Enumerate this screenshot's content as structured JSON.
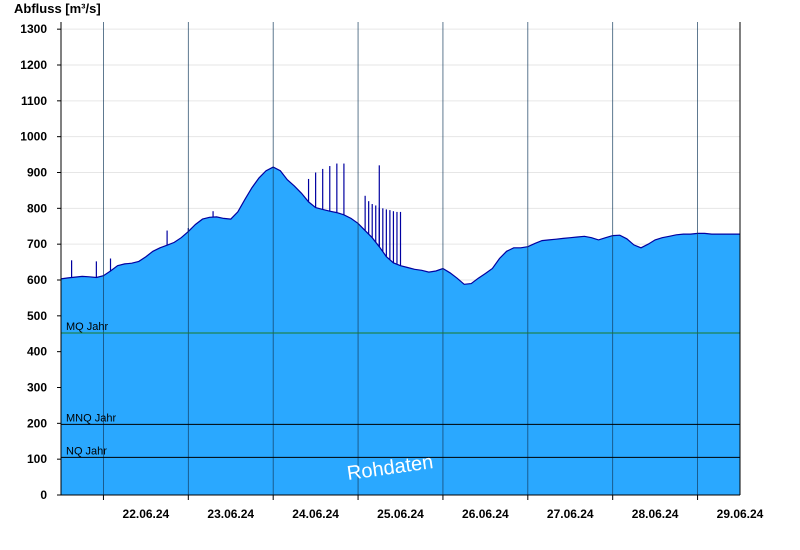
{
  "chart_data": {
    "type": "area",
    "title": "",
    "ylabel": "Abfluss [m³/s]",
    "xlabel": "",
    "ylim": [
      0,
      1320
    ],
    "yticks": [
      0,
      100,
      200,
      300,
      400,
      500,
      600,
      700,
      800,
      900,
      1000,
      1100,
      1200,
      1300
    ],
    "xlim": [
      "21.06.24 12:00",
      "29.06.24 12:00"
    ],
    "day_boundaries": [
      "22.06.24",
      "23.06.24",
      "24.06.24",
      "25.06.24",
      "26.06.24",
      "27.06.24",
      "28.06.24",
      "29.06.24"
    ],
    "xtick_labels": [
      "22.06.24",
      "23.06.24",
      "24.06.24",
      "25.06.24",
      "26.06.24",
      "27.06.24",
      "28.06.24",
      "29.06.24"
    ],
    "grid": true,
    "area_color": "#2aa8ff",
    "line_color": "#0000a0",
    "series": [
      {
        "x": [
          "21.06.24 12:00",
          "21.06.24 14:00",
          "21.06.24 16:00",
          "21.06.24 18:00",
          "21.06.24 20:00",
          "21.06.24 22:00",
          "22.06.24 00:00",
          "22.06.24 02:00",
          "22.06.24 04:00",
          "22.06.24 06:00",
          "22.06.24 08:00",
          "22.06.24 10:00",
          "22.06.24 12:00",
          "22.06.24 14:00",
          "22.06.24 16:00",
          "22.06.24 18:00",
          "22.06.24 20:00",
          "22.06.24 22:00",
          "23.06.24 00:00",
          "23.06.24 02:00",
          "23.06.24 04:00",
          "23.06.24 06:00",
          "23.06.24 08:00",
          "23.06.24 10:00",
          "23.06.24 12:00",
          "23.06.24 14:00",
          "23.06.24 16:00",
          "23.06.24 18:00",
          "23.06.24 20:00",
          "23.06.24 22:00",
          "24.06.24 00:00",
          "24.06.24 02:00",
          "24.06.24 04:00",
          "24.06.24 06:00",
          "24.06.24 08:00",
          "24.06.24 10:00",
          "24.06.24 12:00",
          "24.06.24 14:00",
          "24.06.24 16:00",
          "24.06.24 18:00",
          "24.06.24 20:00",
          "24.06.24 22:00",
          "25.06.24 00:00",
          "25.06.24 02:00",
          "25.06.24 04:00",
          "25.06.24 06:00",
          "25.06.24 08:00",
          "25.06.24 10:00",
          "25.06.24 12:00",
          "25.06.24 14:00",
          "25.06.24 16:00",
          "25.06.24 18:00",
          "25.06.24 20:00",
          "25.06.24 22:00",
          "26.06.24 00:00",
          "26.06.24 02:00",
          "26.06.24 04:00",
          "26.06.24 06:00",
          "26.06.24 08:00",
          "26.06.24 10:00",
          "26.06.24 12:00",
          "26.06.24 14:00",
          "26.06.24 16:00",
          "26.06.24 18:00",
          "26.06.24 20:00",
          "26.06.24 22:00",
          "27.06.24 00:00",
          "27.06.24 02:00",
          "27.06.24 04:00",
          "27.06.24 06:00",
          "27.06.24 08:00",
          "27.06.24 10:00",
          "27.06.24 12:00",
          "27.06.24 14:00",
          "27.06.24 16:00",
          "27.06.24 18:00",
          "27.06.24 20:00",
          "27.06.24 22:00",
          "28.06.24 00:00",
          "28.06.24 02:00",
          "28.06.24 04:00",
          "28.06.24 06:00",
          "28.06.24 08:00",
          "28.06.24 10:00",
          "28.06.24 12:00",
          "28.06.24 14:00",
          "28.06.24 16:00",
          "28.06.24 18:00",
          "28.06.24 20:00",
          "28.06.24 22:00",
          "29.06.24 00:00",
          "29.06.24 02:00",
          "29.06.24 04:00",
          "29.06.24 06:00",
          "29.06.24 08:00",
          "29.06.24 10:00",
          "29.06.24 12:00"
        ],
        "y": [
          603,
          606,
          608,
          610,
          609,
          607,
          612,
          625,
          640,
          645,
          647,
          652,
          665,
          680,
          690,
          697,
          705,
          718,
          735,
          755,
          770,
          775,
          776,
          772,
          770,
          790,
          825,
          858,
          885,
          905,
          915,
          905,
          880,
          862,
          842,
          818,
          802,
          797,
          792,
          788,
          782,
          772,
          758,
          738,
          718,
          693,
          665,
          648,
          640,
          635,
          630,
          627,
          622,
          625,
          632,
          620,
          605,
          588,
          590,
          605,
          618,
          632,
          660,
          680,
          690,
          690,
          693,
          702,
          710,
          712,
          714,
          716,
          718,
          720,
          722,
          718,
          712,
          718,
          724,
          725,
          715,
          698,
          690,
          700,
          712,
          718,
          722,
          726,
          728,
          728,
          730,
          730,
          728,
          728,
          728,
          728,
          728
        ]
      }
    ],
    "spikes": [
      {
        "x": "21.06.24 15:00",
        "y": 655
      },
      {
        "x": "21.06.24 22:00",
        "y": 652
      },
      {
        "x": "22.06.24 02:00",
        "y": 660
      },
      {
        "x": "22.06.24 18:00",
        "y": 738
      },
      {
        "x": "23.06.24 00:00",
        "y": 745
      },
      {
        "x": "23.06.24 07:00",
        "y": 792
      },
      {
        "x": "23.06.24 20:00",
        "y": 815
      },
      {
        "x": "24.06.24 03:00",
        "y": 835
      },
      {
        "x": "24.06.24 10:00",
        "y": 882
      },
      {
        "x": "24.06.24 12:00",
        "y": 900
      },
      {
        "x": "24.06.24 14:00",
        "y": 910
      },
      {
        "x": "24.06.24 16:00",
        "y": 918
      },
      {
        "x": "24.06.24 18:00",
        "y": 925
      },
      {
        "x": "24.06.24 20:00",
        "y": 925
      },
      {
        "x": "25.06.24 06:00",
        "y": 920
      },
      {
        "x": "25.06.24 02:00",
        "y": 835
      },
      {
        "x": "25.06.24 03:00",
        "y": 820
      },
      {
        "x": "25.06.24 04:00",
        "y": 812
      },
      {
        "x": "25.06.24 05:00",
        "y": 808
      },
      {
        "x": "25.06.24 06:00",
        "y": 802
      },
      {
        "x": "25.06.24 07:00",
        "y": 800
      },
      {
        "x": "25.06.24 08:00",
        "y": 797
      },
      {
        "x": "25.06.24 09:00",
        "y": 795
      },
      {
        "x": "25.06.24 10:00",
        "y": 792
      },
      {
        "x": "25.06.24 11:00",
        "y": 790
      },
      {
        "x": "25.06.24 12:00",
        "y": 790
      }
    ],
    "reference_lines": [
      {
        "label": "MQ Jahr",
        "value": 452,
        "color": "#1a7a2a"
      },
      {
        "label": "MNQ Jahr",
        "value": 197,
        "color": "#000000"
      },
      {
        "label": "NQ Jahr",
        "value": 105,
        "color": "#000000"
      }
    ],
    "annotations": [
      {
        "text": "Rohdaten"
      }
    ]
  }
}
